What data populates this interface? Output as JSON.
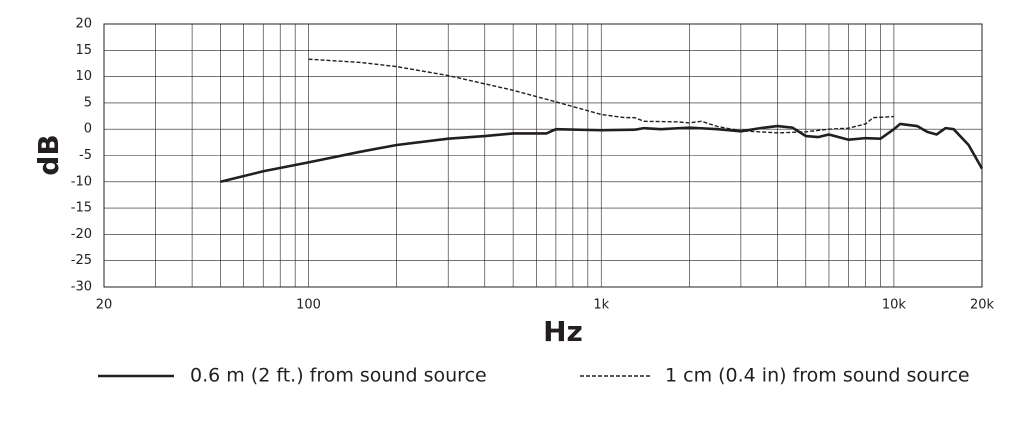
{
  "chart_data": {
    "type": "line",
    "log_x": true,
    "grid": true,
    "x_label": "Hz",
    "y_label": "dB",
    "xlim": [
      20,
      20000
    ],
    "ylim": [
      -30,
      20
    ],
    "xticks": [
      20,
      {
        "value": 30,
        "label": null
      },
      {
        "value": 40,
        "label": null
      },
      {
        "value": 50,
        "label": null
      },
      {
        "value": 60,
        "label": null
      },
      {
        "value": 70,
        "label": null
      },
      {
        "value": 80,
        "label": null
      },
      {
        "value": 90,
        "label": null
      },
      100,
      {
        "value": 200,
        "label": null
      },
      {
        "value": 300,
        "label": null
      },
      {
        "value": 400,
        "label": null
      },
      {
        "value": 500,
        "label": null
      },
      {
        "value": 600,
        "label": null
      },
      {
        "value": 700,
        "label": null
      },
      {
        "value": 800,
        "label": null
      },
      {
        "value": 900,
        "label": null
      },
      {
        "value": 1000,
        "label": "1k"
      },
      {
        "value": 2000,
        "label": null
      },
      {
        "value": 3000,
        "label": null
      },
      {
        "value": 4000,
        "label": null
      },
      {
        "value": 5000,
        "label": null
      },
      {
        "value": 6000,
        "label": null
      },
      {
        "value": 7000,
        "label": null
      },
      {
        "value": 8000,
        "label": null
      },
      {
        "value": 9000,
        "label": null
      },
      {
        "value": 10000,
        "label": "10k"
      },
      {
        "value": 20000,
        "label": "20k"
      }
    ],
    "yticks": [
      -30,
      -25,
      -20,
      -15,
      -10,
      -5,
      0,
      5,
      10,
      15,
      20
    ],
    "series": [
      {
        "name": "0.6 m (2 ft.) from sound source",
        "color": "#231f20",
        "dash": false,
        "x": [
          50,
          70,
          100,
          150,
          200,
          300,
          400,
          500,
          650,
          700,
          1000,
          1300,
          1400,
          1600,
          2000,
          2500,
          3000,
          3500,
          4000,
          4500,
          5000,
          5500,
          6000,
          7000,
          8000,
          9000,
          10000,
          10500,
          12000,
          13000,
          14000,
          15000,
          16000,
          18000,
          20000
        ],
        "values": [
          -10,
          -8,
          -6.3,
          -4.3,
          -3,
          -1.8,
          -1.3,
          -0.8,
          -0.8,
          0,
          -0.2,
          -0.1,
          0.2,
          0,
          0.3,
          0,
          -0.4,
          0.2,
          0.6,
          0.3,
          -1.3,
          -1.5,
          -1,
          -2,
          -1.7,
          -1.8,
          0,
          1,
          0.6,
          -0.5,
          -1,
          0.2,
          0,
          -3,
          -7.5
        ]
      },
      {
        "name": "1 cm (0.4 in) from sound source",
        "color": "#231f20",
        "dash": true,
        "x": [
          100,
          150,
          200,
          300,
          500,
          700,
          1000,
          1200,
          1300,
          1400,
          1800,
          2000,
          2200,
          2500,
          3000,
          4000,
          5000,
          6000,
          7000,
          8000,
          8500,
          10000
        ],
        "values": [
          13.3,
          12.7,
          11.9,
          10.2,
          7.4,
          5.2,
          2.8,
          2.2,
          2.2,
          1.5,
          1.4,
          1.2,
          1.5,
          0.5,
          -0.3,
          -0.7,
          -0.5,
          0,
          0.2,
          1,
          2.2,
          2.4
        ]
      }
    ]
  }
}
